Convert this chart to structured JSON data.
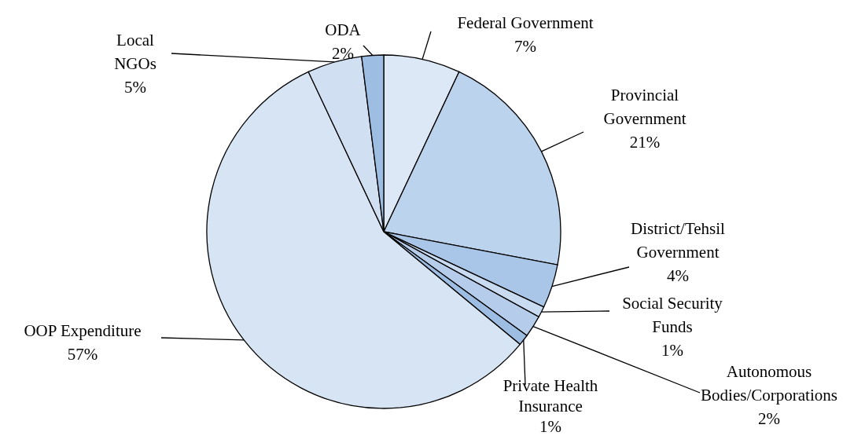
{
  "chart_data": {
    "type": "pie",
    "categories": [
      "Federal Government",
      "Provincial Government",
      "District/Tehsil Government",
      "Social Security Funds",
      "Autonomous Bodies/Corporations",
      "Private Health Insurance",
      "OOP Expenditure",
      "Local NGOs",
      "ODA"
    ],
    "values": [
      7,
      21,
      4,
      1,
      2,
      1,
      57,
      5,
      2
    ],
    "value_labels": [
      "7%",
      "21%",
      "4%",
      "1%",
      "2%",
      "1%",
      "57%",
      "5%",
      "2%"
    ],
    "colors": [
      "#dce8f5",
      "#bcd3ee",
      "#a9c6e8",
      "#c8dbf1",
      "#b5cdeb",
      "#9dbde3",
      "#d6e4f4",
      "#d0e0f2",
      "#9dbde3"
    ],
    "legend": false
  }
}
